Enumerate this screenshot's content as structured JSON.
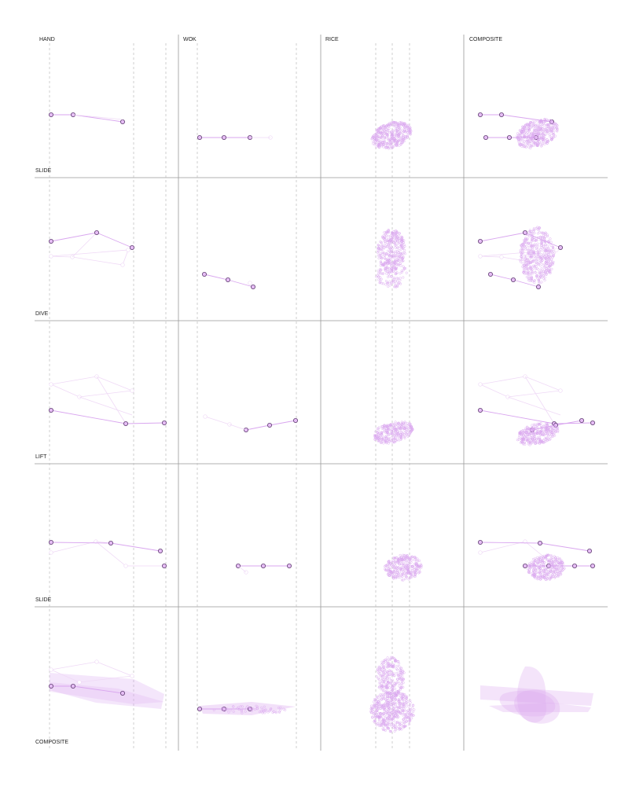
{
  "columns": [
    {
      "key": "hand",
      "label": "HAND"
    },
    {
      "key": "wok",
      "label": "WOK"
    },
    {
      "key": "rice",
      "label": "RICE"
    },
    {
      "key": "composite",
      "label": "COMPOSITE"
    }
  ],
  "rows": [
    {
      "key": "slide-1",
      "label": "SLIDE"
    },
    {
      "key": "dive",
      "label": "DIVE"
    },
    {
      "key": "lift",
      "label": "LIFT"
    },
    {
      "key": "slide-2",
      "label": "SLIDE"
    },
    {
      "key": "composite",
      "label": "COMPOSITE"
    }
  ],
  "colors": {
    "accent": "#d9a6ef",
    "accent_dark": "#5e3b70",
    "node_fill": "#e6bdf5",
    "faint": "#efd9f6",
    "grid": "#999999",
    "guide": "#bbbbbb",
    "text": "#222222"
  }
}
